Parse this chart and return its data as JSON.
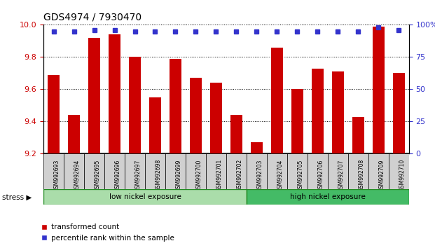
{
  "title": "GDS4974 / 7930470",
  "samples": [
    "GSM992693",
    "GSM992694",
    "GSM992695",
    "GSM992696",
    "GSM992697",
    "GSM992698",
    "GSM992699",
    "GSM992700",
    "GSM992701",
    "GSM992702",
    "GSM992703",
    "GSM992704",
    "GSM992705",
    "GSM992706",
    "GSM992707",
    "GSM992708",
    "GSM992709",
    "GSM992710"
  ],
  "bar_values": [
    9.69,
    9.44,
    9.92,
    9.94,
    9.8,
    9.55,
    9.79,
    9.67,
    9.64,
    9.44,
    9.27,
    9.86,
    9.6,
    9.73,
    9.71,
    9.43,
    9.99,
    9.7
  ],
  "percentile_values": [
    95,
    95,
    96,
    96,
    95,
    95,
    95,
    95,
    95,
    95,
    95,
    95,
    95,
    95,
    95,
    95,
    98,
    96
  ],
  "bar_color": "#cc0000",
  "dot_color": "#3333cc",
  "ylim_left": [
    9.2,
    10.0
  ],
  "ylim_right": [
    0,
    100
  ],
  "yticks_left": [
    9.2,
    9.4,
    9.6,
    9.8,
    10.0
  ],
  "yticks_right": [
    0,
    25,
    50,
    75,
    100
  ],
  "group1_label": "low nickel exposure",
  "group2_label": "high nickel exposure",
  "group1_count": 10,
  "group2_count": 8,
  "group1_color": "#aaddaa",
  "group2_color": "#44bb66",
  "stress_label": "stress",
  "legend_bar_label": "transformed count",
  "legend_dot_label": "percentile rank within the sample",
  "bar_width": 0.6,
  "bg_color": "#ffffff",
  "plot_bg_color": "#ffffff",
  "tick_label_color_left": "#cc0000",
  "tick_label_color_right": "#3333cc"
}
